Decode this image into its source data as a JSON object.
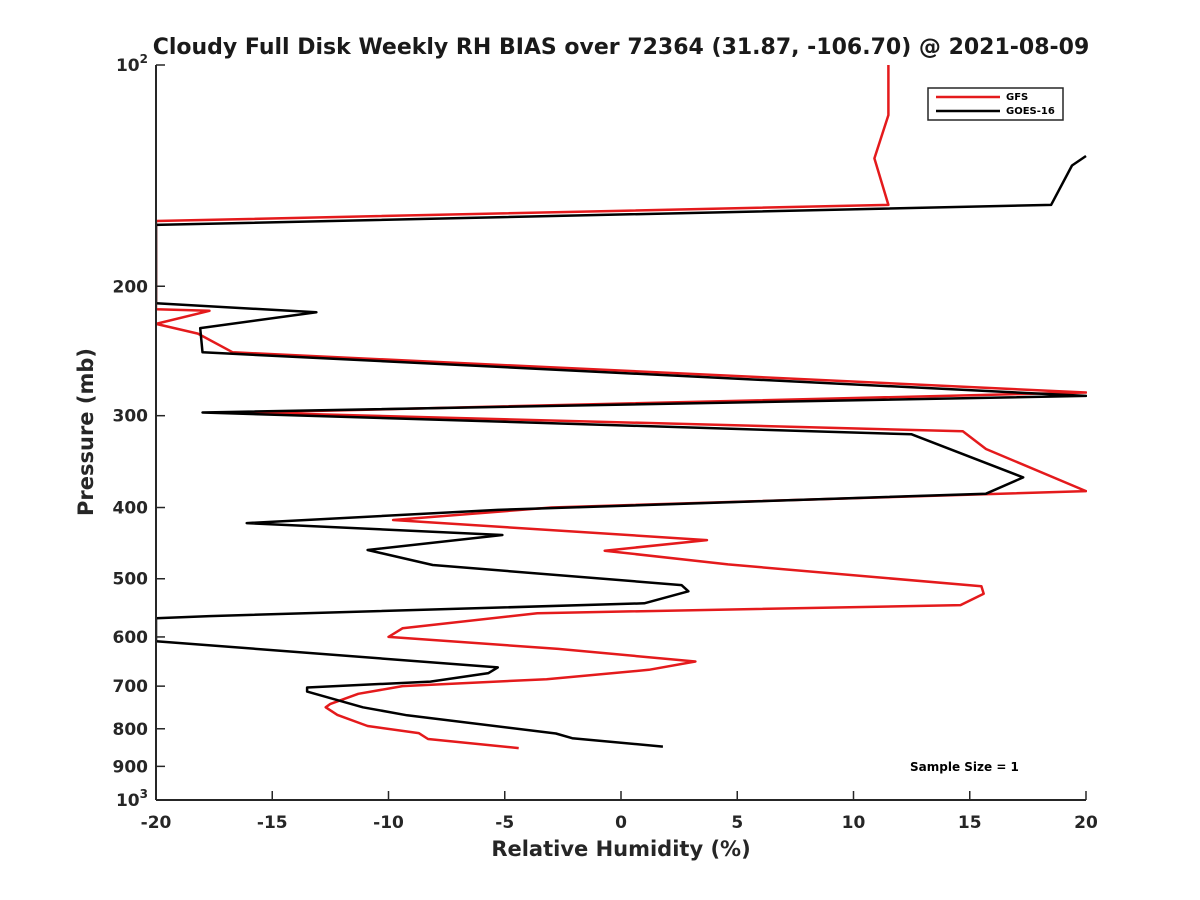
{
  "chart_data": {
    "type": "line",
    "title": "Cloudy Full Disk Weekly RH BIAS over 72364 (31.87, -106.70) @ 2021-08-09",
    "xlabel": "Relative Humidity (%)",
    "ylabel": "Pressure (mb)",
    "xlim": [
      -20,
      20
    ],
    "ylim": [
      100,
      1000
    ],
    "y_scale": "log",
    "y_reversed": true,
    "grid": false,
    "legend_position": "top-right",
    "x_ticks": [
      -20,
      -15,
      -10,
      -5,
      0,
      5,
      10,
      15,
      20
    ],
    "x_tick_labels": [
      "-20",
      "-15",
      "-10",
      "-5",
      "0",
      "5",
      "10",
      "15",
      "20"
    ],
    "y_ticks": [
      100,
      200,
      300,
      400,
      500,
      600,
      700,
      800,
      900,
      1000
    ],
    "y_tick_labels": [
      "10^2",
      "200",
      "300",
      "400",
      "500",
      "600",
      "700",
      "800",
      "900",
      "10^3"
    ],
    "annotation": "Sample Size = 1",
    "series": [
      {
        "name": "GFS",
        "color": "#e41a1c",
        "points": [
          [
            11.5,
            100
          ],
          [
            11.5,
            117
          ],
          [
            10.9,
            134
          ],
          [
            11.5,
            155
          ],
          [
            -20,
            163
          ],
          [
            -20,
            215
          ],
          [
            -17.7,
            216
          ],
          [
            -20,
            225
          ],
          [
            -18.2,
            232
          ],
          [
            -16.7,
            246
          ],
          [
            20,
            279
          ],
          [
            -16,
            297
          ],
          [
            14.7,
            315
          ],
          [
            15.7,
            333
          ],
          [
            20,
            380
          ],
          [
            -3,
            400
          ],
          [
            -9.8,
            416
          ],
          [
            3.7,
            443
          ],
          [
            -0.7,
            458
          ],
          [
            4.6,
            478
          ],
          [
            15.5,
            512
          ],
          [
            15.6,
            524
          ],
          [
            14.6,
            543
          ],
          [
            -3.6,
            557
          ],
          [
            -9.4,
            584
          ],
          [
            -10,
            600
          ],
          [
            -2.7,
            623
          ],
          [
            3.2,
            648
          ],
          [
            1.2,
            665
          ],
          [
            -3.2,
            685
          ],
          [
            -9.4,
            700
          ],
          [
            -11.3,
            717
          ],
          [
            -12.5,
            740
          ],
          [
            -12.7,
            748
          ],
          [
            -12.2,
            766
          ],
          [
            -10.9,
            793
          ],
          [
            -8.7,
            811
          ],
          [
            -8.3,
            826
          ],
          [
            -4.4,
            850
          ]
        ]
      },
      {
        "name": "GOES-16",
        "color": "#000000",
        "points": [
          [
            20,
            133
          ],
          [
            19.4,
            137
          ],
          [
            18.5,
            155
          ],
          [
            -20,
            165
          ],
          [
            -20,
            211
          ],
          [
            -13.1,
            217
          ],
          [
            -18.1,
            228
          ],
          [
            -18,
            246
          ],
          [
            20,
            282
          ],
          [
            -18,
            297
          ],
          [
            12.5,
            318
          ],
          [
            17.3,
            364
          ],
          [
            15.7,
            383
          ],
          [
            -5.3,
            403
          ],
          [
            -16.1,
            420
          ],
          [
            -5.1,
            436
          ],
          [
            -10.9,
            457
          ],
          [
            -8.1,
            479
          ],
          [
            2.6,
            510
          ],
          [
            2.9,
            520
          ],
          [
            1,
            540
          ],
          [
            -17.7,
            562
          ],
          [
            -20,
            566
          ],
          [
            -20,
            608
          ],
          [
            -5.3,
            660
          ],
          [
            -5.7,
            672
          ],
          [
            -8.2,
            690
          ],
          [
            -13.5,
            703
          ],
          [
            -13.5,
            712
          ],
          [
            -11.1,
            748
          ],
          [
            -9.2,
            767
          ],
          [
            -2.8,
            812
          ],
          [
            -2.1,
            824
          ],
          [
            1.8,
            846
          ]
        ]
      }
    ]
  }
}
